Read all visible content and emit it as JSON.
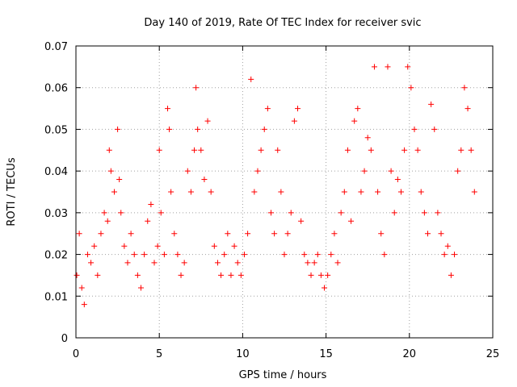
{
  "chart_data": {
    "type": "scatter",
    "title": "Day 140 of 2019, Rate Of TEC Index for receiver svic",
    "xlabel": "GPS time / hours",
    "ylabel": "ROTI / TECUs",
    "xlim": [
      0,
      25
    ],
    "ylim": [
      0,
      0.07
    ],
    "xticks": [
      0,
      5,
      10,
      15,
      20,
      25
    ],
    "xtick_labels": [
      "0",
      "5",
      "10",
      "15",
      "20",
      "25"
    ],
    "yticks": [
      0,
      0.01,
      0.02,
      0.03,
      0.04,
      0.05,
      0.06,
      0.07
    ],
    "ytick_labels": [
      "0",
      "0.01",
      "0.02",
      "0.03",
      "0.04",
      "0.05",
      "0.06",
      "0.07"
    ],
    "grid": true,
    "marker": "plus",
    "color": "#ff0000",
    "series": [
      {
        "name": "ROTI",
        "x": [
          0.05,
          0.2,
          0.35,
          0.5,
          0.7,
          0.9,
          1.1,
          1.3,
          1.5,
          1.7,
          1.9,
          2.0,
          2.1,
          2.3,
          2.5,
          2.6,
          2.7,
          2.9,
          3.1,
          3.3,
          3.5,
          3.7,
          3.9,
          4.1,
          4.3,
          4.5,
          4.7,
          4.9,
          5.0,
          5.1,
          5.3,
          5.5,
          5.6,
          5.7,
          5.9,
          6.1,
          6.3,
          6.5,
          6.7,
          6.9,
          7.1,
          7.2,
          7.3,
          7.5,
          7.7,
          7.9,
          8.1,
          8.3,
          8.5,
          8.7,
          8.9,
          9.1,
          9.3,
          9.5,
          9.7,
          9.9,
          10.1,
          10.3,
          10.5,
          10.7,
          10.9,
          11.1,
          11.3,
          11.5,
          11.7,
          11.9,
          12.1,
          12.3,
          12.5,
          12.7,
          12.9,
          13.1,
          13.3,
          13.5,
          13.7,
          13.9,
          14.1,
          14.3,
          14.5,
          14.7,
          14.9,
          15.1,
          15.3,
          15.5,
          15.7,
          15.9,
          16.1,
          16.3,
          16.5,
          16.7,
          16.9,
          17.1,
          17.3,
          17.5,
          17.7,
          17.9,
          18.1,
          18.3,
          18.5,
          18.7,
          18.9,
          19.1,
          19.3,
          19.5,
          19.7,
          19.9,
          20.1,
          20.3,
          20.5,
          20.7,
          20.9,
          21.1,
          21.3,
          21.5,
          21.7,
          21.9,
          22.1,
          22.3,
          22.5,
          22.7,
          22.9,
          23.1,
          23.3,
          23.5,
          23.7,
          23.9
        ],
        "y": [
          0.015,
          0.025,
          0.012,
          0.008,
          0.02,
          0.018,
          0.022,
          0.015,
          0.025,
          0.03,
          0.028,
          0.045,
          0.04,
          0.035,
          0.05,
          0.038,
          0.03,
          0.022,
          0.018,
          0.025,
          0.02,
          0.015,
          0.012,
          0.02,
          0.028,
          0.032,
          0.018,
          0.022,
          0.045,
          0.03,
          0.02,
          0.055,
          0.05,
          0.035,
          0.025,
          0.02,
          0.015,
          0.018,
          0.04,
          0.035,
          0.045,
          0.06,
          0.05,
          0.045,
          0.038,
          0.052,
          0.035,
          0.022,
          0.018,
          0.015,
          0.02,
          0.025,
          0.015,
          0.022,
          0.018,
          0.015,
          0.02,
          0.025,
          0.062,
          0.035,
          0.04,
          0.045,
          0.05,
          0.055,
          0.03,
          0.025,
          0.045,
          0.035,
          0.02,
          0.025,
          0.03,
          0.052,
          0.055,
          0.028,
          0.02,
          0.018,
          0.015,
          0.018,
          0.02,
          0.015,
          0.012,
          0.015,
          0.02,
          0.025,
          0.018,
          0.03,
          0.035,
          0.045,
          0.028,
          0.052,
          0.055,
          0.035,
          0.04,
          0.048,
          0.045,
          0.065,
          0.035,
          0.025,
          0.02,
          0.065,
          0.04,
          0.03,
          0.038,
          0.035,
          0.045,
          0.065,
          0.06,
          0.05,
          0.045,
          0.035,
          0.03,
          0.025,
          0.056,
          0.05,
          0.03,
          0.025,
          0.02,
          0.022,
          0.015,
          0.02,
          0.04,
          0.045,
          0.06,
          0.055,
          0.045,
          0.035
        ]
      }
    ]
  }
}
